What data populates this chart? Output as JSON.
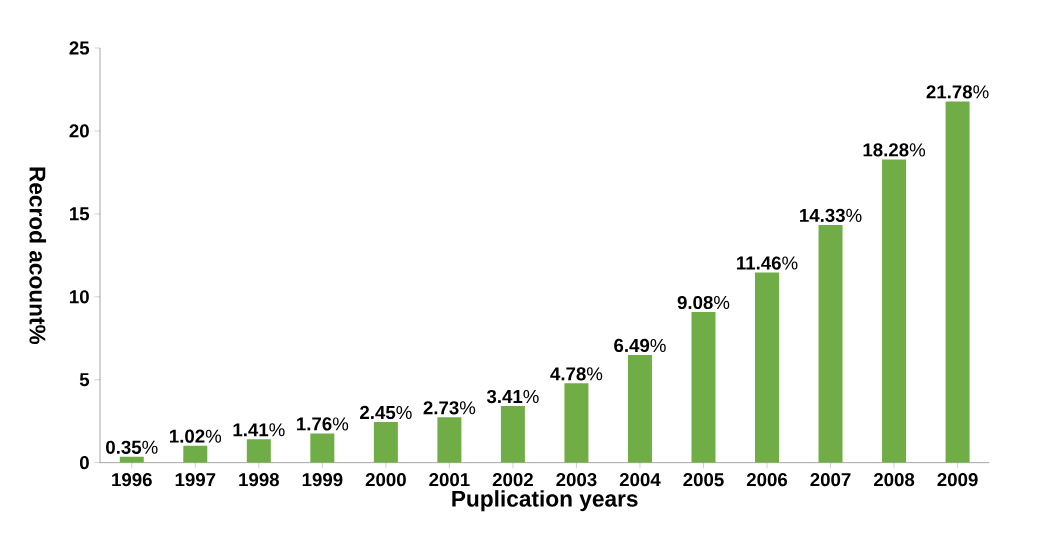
{
  "chart_data": {
    "type": "bar",
    "xlabel": "Puplication years",
    "ylabel": "Recrod acount%",
    "categories": [
      "1996",
      "1997",
      "1998",
      "1999",
      "2000",
      "2001",
      "2002",
      "2003",
      "2004",
      "2005",
      "2006",
      "2007",
      "2008",
      "2009"
    ],
    "values": [
      0.35,
      1.02,
      1.41,
      1.76,
      2.45,
      2.73,
      3.41,
      4.78,
      6.49,
      9.08,
      11.46,
      14.33,
      18.28,
      21.78
    ],
    "value_labels": [
      "**0.35**%",
      "**1.02**%",
      "**1.41**%",
      "**1.76**%",
      "**2.45**%",
      "**2.73**%",
      "**3.41**%",
      "**4.78**%",
      "**6.49**%",
      "**9.08**%",
      "**11.46**%",
      "**14.33**%",
      "**18.28**%",
      "**21.78**%"
    ],
    "color": "#70ad47",
    "ylim": [
      0,
      25
    ],
    "yticks": [
      0,
      5,
      10,
      15,
      20,
      25
    ],
    "grid": false
  }
}
